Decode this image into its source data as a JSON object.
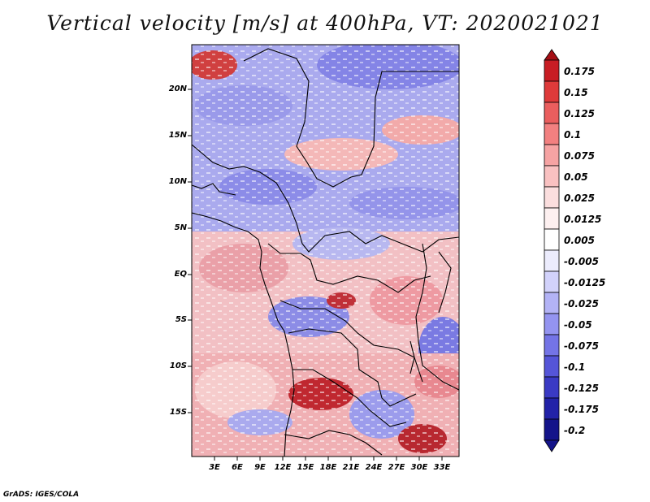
{
  "title": "Vertical velocity [m/s] at 400hPa, VT: 2020021021",
  "y_axis_labels": [
    "20N",
    "15N",
    "10N",
    "5N",
    "EQ",
    "5S",
    "10S",
    "15S"
  ],
  "x_axis_labels": [
    "3E",
    "6E",
    "9E",
    "12E",
    "15E",
    "18E",
    "21E",
    "24E",
    "27E",
    "30E",
    "33E"
  ],
  "colorbar": {
    "levels": [
      "0.175",
      "0.15",
      "0.125",
      "0.1",
      "0.075",
      "0.05",
      "0.025",
      "0.0125",
      "0.005",
      "-0.005",
      "-0.0125",
      "-0.025",
      "-0.05",
      "-0.075",
      "-0.1",
      "-0.125",
      "-0.175",
      "-0.2"
    ],
    "colors": [
      "#a50f15",
      "#c81d24",
      "#de3a3a",
      "#ea5e5e",
      "#f28080",
      "#f6a3a3",
      "#f9c1c1",
      "#fbdede",
      "#fdf0f0",
      "#ffffff",
      "#ececfd",
      "#d2d2fb",
      "#b3b3f6",
      "#9494f0",
      "#7474e6",
      "#5555d8",
      "#3a3ac4",
      "#2222a8",
      "#14148a"
    ]
  },
  "credit": "GrADS: IGES/COLA"
}
